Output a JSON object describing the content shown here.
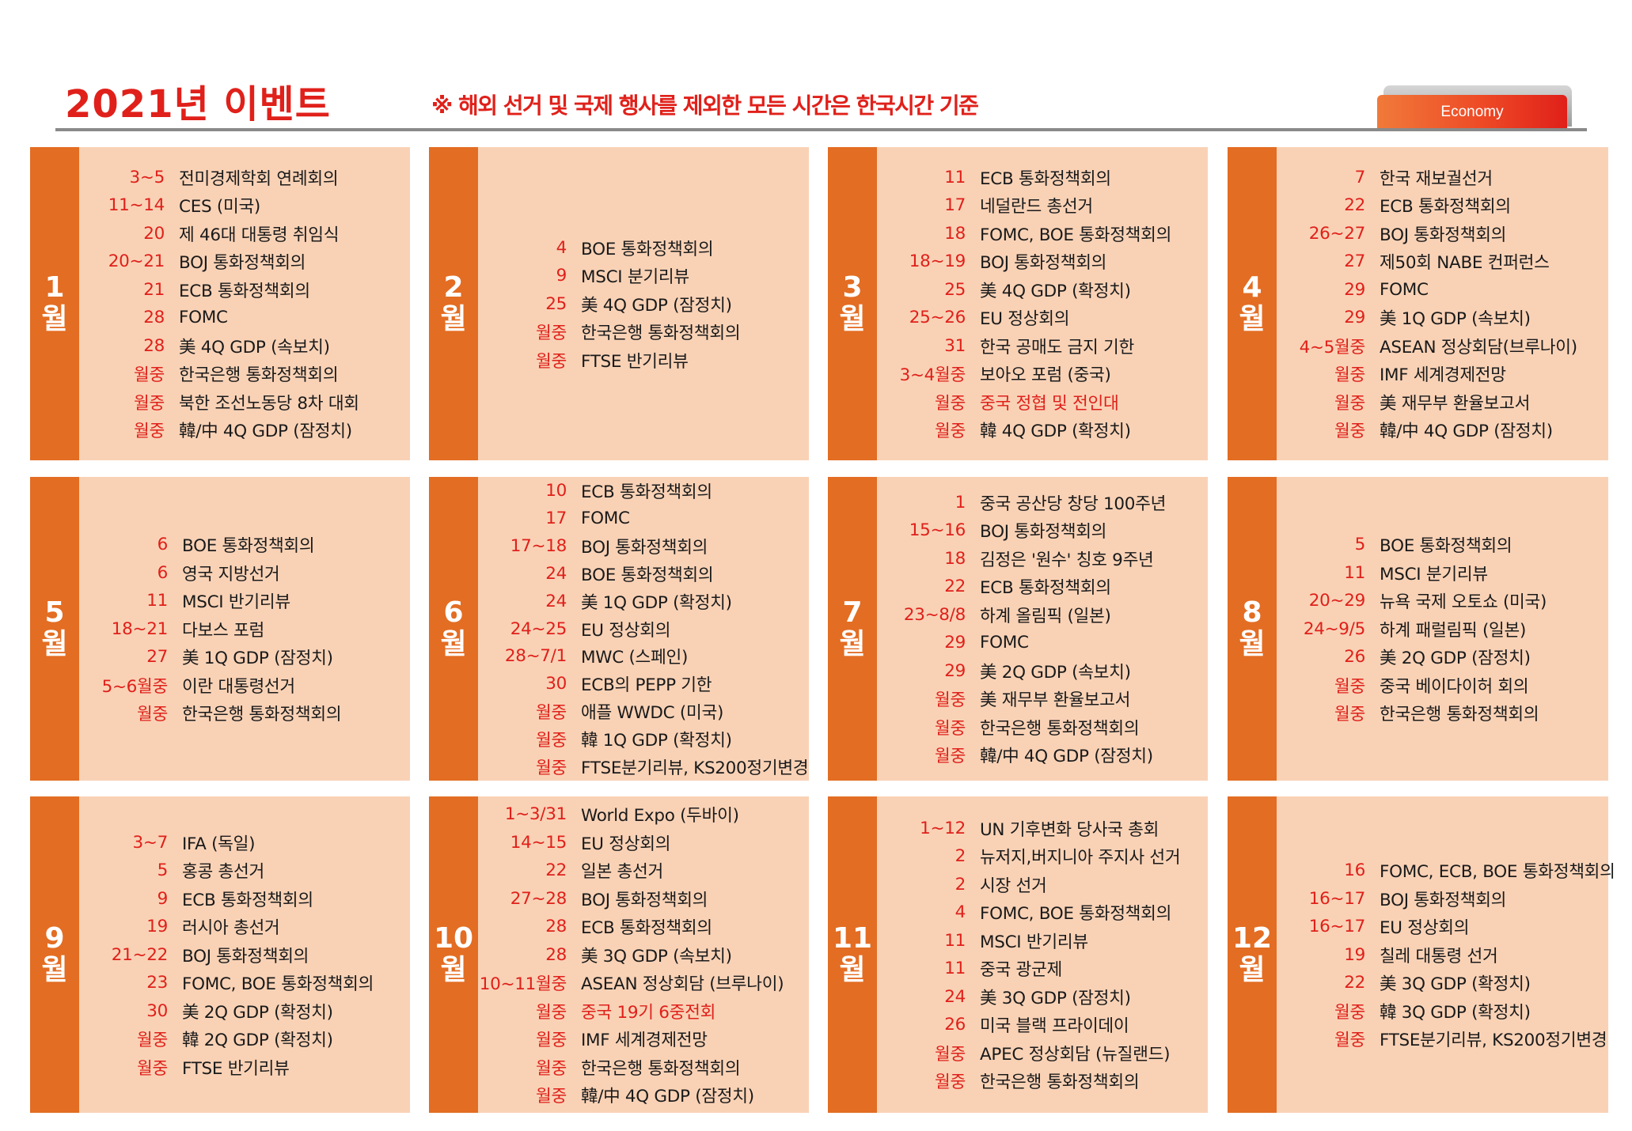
{
  "header": {
    "title": "2021년 이벤트",
    "notice": "※ 해외 선거 및 국제 행사를 제외한 모든 시간은 한국시간 기준",
    "badge": "Economy"
  },
  "colors": {
    "accent_red": "#e0201a",
    "tab_orange": "#e36d23",
    "panel_peach": "#f9d2b6",
    "rule_gray": "#8a8a8a"
  },
  "months": [
    {
      "label": "1",
      "unit": "월",
      "events": [
        {
          "date": "3~5",
          "text": "전미경제학회 연례회의"
        },
        {
          "date": "11~14",
          "text": "CES (미국)"
        },
        {
          "date": "20",
          "text": "제 46대 대통령 취임식"
        },
        {
          "date": "20~21",
          "text": "BOJ 통화정책회의"
        },
        {
          "date": "21",
          "text": "ECB 통화정책회의"
        },
        {
          "date": "28",
          "text": "FOMC"
        },
        {
          "date": "28",
          "text": "美 4Q GDP (속보치)"
        },
        {
          "date": "월중",
          "text": "한국은행 통화정책회의"
        },
        {
          "date": "월중",
          "text": "북한 조선노동당 8차 대회"
        },
        {
          "date": "월중",
          "text": "韓/中 4Q GDP (잠정치)"
        }
      ]
    },
    {
      "label": "2",
      "unit": "월",
      "events": [
        {
          "date": "4",
          "text": "BOE 통화정책회의"
        },
        {
          "date": "9",
          "text": "MSCI 분기리뷰"
        },
        {
          "date": "25",
          "text": "美 4Q GDP (잠정치)"
        },
        {
          "date": "월중",
          "text": "한국은행 통화정책회의"
        },
        {
          "date": "월중",
          "text": "FTSE 반기리뷰"
        }
      ]
    },
    {
      "label": "3",
      "unit": "월",
      "events": [
        {
          "date": "11",
          "text": "ECB 통화정책회의"
        },
        {
          "date": "17",
          "text": "네덜란드 총선거"
        },
        {
          "date": "18",
          "text": "FOMC, BOE 통화정책회의"
        },
        {
          "date": "18~19",
          "text": "BOJ 통화정책회의"
        },
        {
          "date": "25",
          "text": "美 4Q GDP (확정치)"
        },
        {
          "date": "25~26",
          "text": "EU 정상회의"
        },
        {
          "date": "31",
          "text": "한국 공매도 금지 기한"
        },
        {
          "date": "3~4월중",
          "text": "보아오 포럼 (중국)"
        },
        {
          "date": "월중",
          "text": "중국 정협 및 전인대",
          "red": true
        },
        {
          "date": "월중",
          "text": "韓 4Q GDP (확정치)"
        }
      ]
    },
    {
      "label": "4",
      "unit": "월",
      "events": [
        {
          "date": "7",
          "text": "한국 재보궐선거"
        },
        {
          "date": "22",
          "text": "ECB 통화정책회의"
        },
        {
          "date": "26~27",
          "text": "BOJ 통화정책회의"
        },
        {
          "date": "27",
          "text": "제50회 NABE 컨퍼런스"
        },
        {
          "date": "29",
          "text": "FOMC"
        },
        {
          "date": "29",
          "text": "美 1Q GDP (속보치)"
        },
        {
          "date": "4~5월중",
          "text": "ASEAN 정상회담(브루나이)"
        },
        {
          "date": "월중",
          "text": "IMF 세계경제전망"
        },
        {
          "date": "월중",
          "text": "美 재무부 환율보고서"
        },
        {
          "date": "월중",
          "text": "韓/中 4Q GDP (잠정치)"
        }
      ]
    },
    {
      "label": "5",
      "unit": "월",
      "events": [
        {
          "date": "6",
          "text": "BOE 통화정책회의"
        },
        {
          "date": "6",
          "text": "영국 지방선거"
        },
        {
          "date": "11",
          "text": "MSCI 반기리뷰"
        },
        {
          "date": "18~21",
          "text": "다보스 포럼"
        },
        {
          "date": "27",
          "text": "美 1Q GDP (잠정치)"
        },
        {
          "date": "5~6월중",
          "text": "이란 대통령선거"
        },
        {
          "date": "월중",
          "text": "한국은행 통화정책회의"
        }
      ]
    },
    {
      "label": "6",
      "unit": "월",
      "events": [
        {
          "date": "10",
          "text": "ECB 통화정책회의"
        },
        {
          "date": "17",
          "text": "FOMC"
        },
        {
          "date": "17~18",
          "text": "BOJ 통화정책회의"
        },
        {
          "date": "24",
          "text": "BOE 통화정책회의"
        },
        {
          "date": "24",
          "text": "美 1Q GDP (확정치)"
        },
        {
          "date": "24~25",
          "text": "EU 정상회의"
        },
        {
          "date": "28~7/1",
          "text": "MWC (스페인)"
        },
        {
          "date": "30",
          "text": "ECB의 PEPP 기한"
        },
        {
          "date": "월중",
          "text": "애플 WWDC (미국)"
        },
        {
          "date": "월중",
          "text": "韓 1Q GDP (확정치)"
        },
        {
          "date": "월중",
          "text": "FTSE분기리뷰, KS200정기변경"
        }
      ]
    },
    {
      "label": "7",
      "unit": "월",
      "events": [
        {
          "date": "1",
          "text": "중국 공산당 창당 100주년"
        },
        {
          "date": "15~16",
          "text": "BOJ 통화정책회의"
        },
        {
          "date": "18",
          "text": "김정은 '원수' 칭호 9주년"
        },
        {
          "date": "22",
          "text": "ECB 통화정책회의"
        },
        {
          "date": "23~8/8",
          "text": "하계 올림픽 (일본)"
        },
        {
          "date": "29",
          "text": "FOMC"
        },
        {
          "date": "29",
          "text": "美 2Q GDP (속보치)"
        },
        {
          "date": "월중",
          "text": "美 재무부 환율보고서"
        },
        {
          "date": "월중",
          "text": "한국은행 통화정책회의"
        },
        {
          "date": "월중",
          "text": "韓/中 4Q GDP (잠정치)"
        }
      ]
    },
    {
      "label": "8",
      "unit": "월",
      "events": [
        {
          "date": "5",
          "text": "BOE 통화정책회의"
        },
        {
          "date": "11",
          "text": "MSCI 분기리뷰"
        },
        {
          "date": "20~29",
          "text": "뉴욕 국제 오토쇼 (미국)"
        },
        {
          "date": "24~9/5",
          "text": "하계 패럴림픽 (일본)"
        },
        {
          "date": "26",
          "text": "美 2Q GDP (잠정치)"
        },
        {
          "date": "월중",
          "text": "중국 베이다이허 회의"
        },
        {
          "date": "월중",
          "text": "한국은행 통화정책회의"
        }
      ]
    },
    {
      "label": "9",
      "unit": "월",
      "events": [
        {
          "date": "3~7",
          "text": "IFA (독일)"
        },
        {
          "date": "5",
          "text": "홍콩 총선거"
        },
        {
          "date": "9",
          "text": "ECB 통화정책회의"
        },
        {
          "date": "19",
          "text": "러시아 총선거"
        },
        {
          "date": "21~22",
          "text": "BOJ 통화정책회의"
        },
        {
          "date": "23",
          "text": "FOMC, BOE 통화정책회의"
        },
        {
          "date": "30",
          "text": "美 2Q GDP (확정치)"
        },
        {
          "date": "월중",
          "text": "韓 2Q GDP (확정치)"
        },
        {
          "date": "월중",
          "text": "FTSE 반기리뷰"
        }
      ]
    },
    {
      "label": "10",
      "unit": "월",
      "events": [
        {
          "date": "1~3/31",
          "text": "World Expo (두바이)"
        },
        {
          "date": "14~15",
          "text": "EU 정상회의"
        },
        {
          "date": "22",
          "text": "일본 총선거"
        },
        {
          "date": "27~28",
          "text": "BOJ 통화정책회의"
        },
        {
          "date": "28",
          "text": "ECB 통화정책회의"
        },
        {
          "date": "28",
          "text": "美 3Q GDP (속보치)"
        },
        {
          "date": "10~11월중",
          "text": "ASEAN 정상회담 (브루나이)"
        },
        {
          "date": "월중",
          "text": "중국 19기 6중전회",
          "red": true
        },
        {
          "date": "월중",
          "text": "IMF 세계경제전망"
        },
        {
          "date": "월중",
          "text": "한국은행 통화정책회의"
        },
        {
          "date": "월중",
          "text": "韓/中 4Q GDP (잠정치)"
        }
      ]
    },
    {
      "label": "11",
      "unit": "월",
      "events": [
        {
          "date": "1~12",
          "text": "UN 기후변화 당사국 총회"
        },
        {
          "date": "2",
          "text": "뉴저지,버지니아 주지사 선거"
        },
        {
          "date": "2",
          "text": "시장 선거"
        },
        {
          "date": "4",
          "text": "FOMC, BOE 통화정책회의"
        },
        {
          "date": "11",
          "text": "MSCI 반기리뷰"
        },
        {
          "date": "11",
          "text": "중국 광군제"
        },
        {
          "date": "24",
          "text": "美 3Q GDP (잠정치)"
        },
        {
          "date": "26",
          "text": "미국 블랙 프라이데이"
        },
        {
          "date": "월중",
          "text": "APEC 정상회담 (뉴질랜드)"
        },
        {
          "date": "월중",
          "text": "한국은행 통화정책회의"
        }
      ]
    },
    {
      "label": "12",
      "unit": "월",
      "events": [
        {
          "date": "16",
          "text": "FOMC, ECB, BOE 통화정책회의"
        },
        {
          "date": "16~17",
          "text": "BOJ 통화정책회의"
        },
        {
          "date": "16~17",
          "text": "EU 정상회의"
        },
        {
          "date": "19",
          "text": "칠레 대통령 선거"
        },
        {
          "date": "22",
          "text": "美 3Q GDP (확정치)"
        },
        {
          "date": "월중",
          "text": "韓 3Q GDP (확정치)"
        },
        {
          "date": "월중",
          "text": "FTSE분기리뷰, KS200정기변경"
        }
      ]
    }
  ]
}
